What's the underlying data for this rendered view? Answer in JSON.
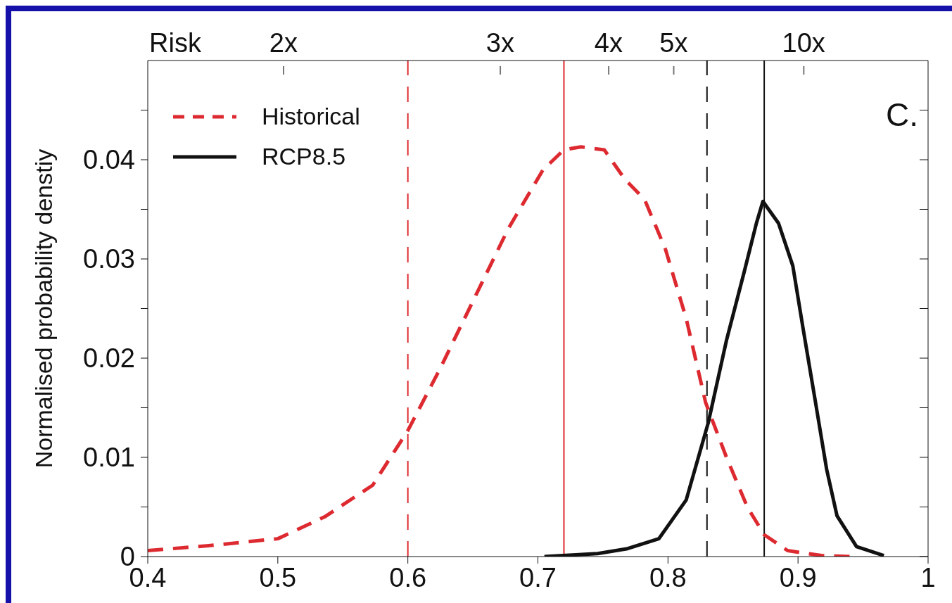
{
  "chart_data": {
    "type": "line",
    "ylabel": "Normalised probability denstiy",
    "annotations": [
      "Risk",
      "2x",
      "3x",
      "4x",
      "5x",
      "10x",
      "C."
    ],
    "xlim": [
      0.4,
      1.0
    ],
    "xticks": [
      0.4,
      0.5,
      0.6,
      0.7,
      0.8,
      0.9,
      1
    ],
    "ylim": [
      0,
      0.05
    ],
    "yticks": [
      0,
      {
        "value": 0.005,
        "label": null
      },
      0.01,
      {
        "value": 0.015,
        "label": null
      },
      0.02,
      {
        "value": 0.025,
        "label": null
      },
      0.03,
      {
        "value": 0.035,
        "label": null
      },
      0.04,
      {
        "value": 0.045,
        "label": null
      }
    ],
    "legend": "top left",
    "marker": "none",
    "grid": false,
    "series": [
      {
        "name": "Historical",
        "color": "#dd2a30",
        "line_style": "dashed",
        "x": [
          0.4,
          0.447,
          0.5,
          0.536,
          0.573,
          0.6,
          0.625,
          0.651,
          0.677,
          0.704,
          0.72,
          0.733,
          0.751,
          0.767,
          0.782,
          0.798,
          0.814,
          0.829,
          0.845,
          0.861,
          0.874,
          0.892,
          0.918,
          0.94
        ],
        "values": [
          0.0006,
          0.0011,
          0.0018,
          0.004,
          0.0072,
          0.0127,
          0.019,
          0.026,
          0.033,
          0.039,
          0.041,
          0.0413,
          0.041,
          0.038,
          0.036,
          0.031,
          0.024,
          0.0155,
          0.01,
          0.005,
          0.0022,
          0.0006,
          0.0001,
          0
        ]
      },
      {
        "name": "RCP8.5",
        "color": "#111111",
        "line_style": "solid",
        "x": [
          0.705,
          0.746,
          0.769,
          0.793,
          0.814,
          0.831,
          0.845,
          0.859,
          0.868,
          0.873,
          0.885,
          0.896,
          0.904,
          0.913,
          0.922,
          0.93,
          0.945,
          0.966
        ],
        "values": [
          0,
          0.0003,
          0.0008,
          0.0018,
          0.0057,
          0.0135,
          0.0218,
          0.0289,
          0.0336,
          0.0358,
          0.0336,
          0.0293,
          0.0229,
          0.0159,
          0.0088,
          0.0041,
          0.001,
          0.0001
        ]
      }
    ],
    "ref_lines": [
      {
        "axis": "x",
        "value": 0.6,
        "color": "#dd2a30",
        "line_style": "dashed"
      },
      {
        "axis": "x",
        "value": 0.72,
        "color": "#dd2a30",
        "line_style": "solid"
      },
      {
        "axis": "x",
        "value": 0.83,
        "color": "#111111",
        "line_style": "dashed"
      },
      {
        "axis": "x",
        "value": 0.874,
        "color": "#111111",
        "line_style": "solid"
      }
    ]
  }
}
